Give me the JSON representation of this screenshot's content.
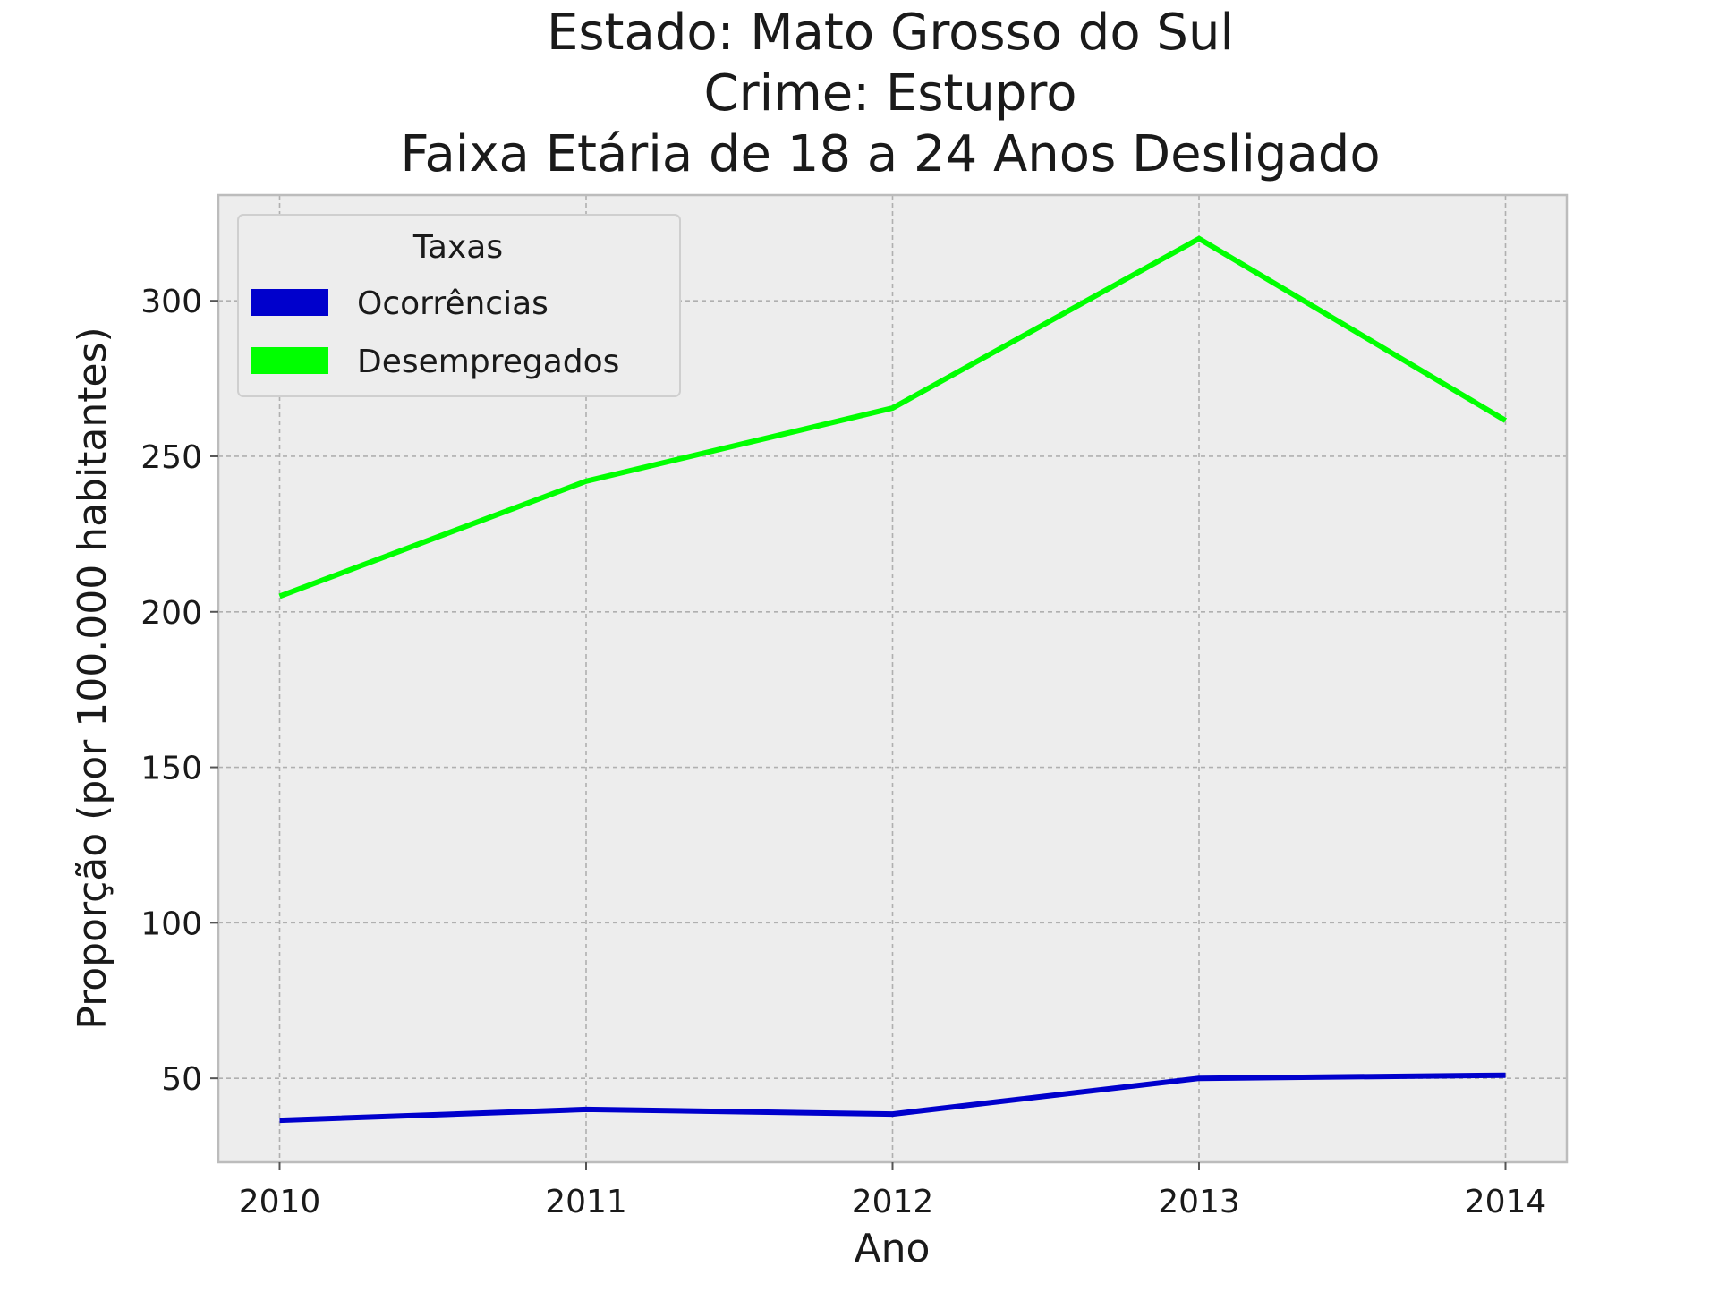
{
  "chart_data": {
    "type": "line",
    "title_lines": [
      "Estado: Mato Grosso do Sul",
      "Crime: Estupro",
      "Faixa Etária de 18 a 24 Anos   Desligado"
    ],
    "xlabel": "Ano",
    "ylabel": "Proporção (por 100.000 habitantes)",
    "x": [
      2010,
      2011,
      2012,
      2013,
      2014
    ],
    "x_tick_labels": [
      "2010",
      "2011",
      "2012",
      "2013",
      "2014"
    ],
    "xlim": [
      2009.8,
      2014.2
    ],
    "y_ticks": [
      50,
      100,
      150,
      200,
      250,
      300
    ],
    "ylim": [
      23,
      334
    ],
    "grid": true,
    "legend": {
      "title": "Taxas",
      "placement": "top-left"
    },
    "series": [
      {
        "name": "Ocorrências",
        "color": "#0000cc",
        "values": [
          36.5,
          40,
          38.5,
          50,
          51
        ]
      },
      {
        "name": "Desempregados",
        "color": "#00ff00",
        "values": [
          205,
          242,
          265.5,
          320,
          261.5
        ]
      }
    ],
    "background_color": "#ededed",
    "grid_color": "#b0b0b0",
    "frame_color": "#bcbcbc"
  }
}
